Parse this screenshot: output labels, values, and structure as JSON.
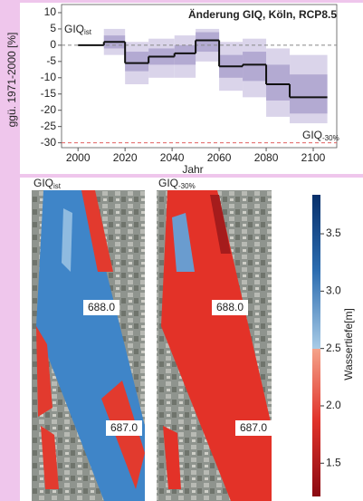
{
  "chart_data": {
    "type": "step",
    "title": "Änderung GIQ, Köln, RCP8.5",
    "y_label": "ggü. 1971-2000 [%]",
    "x_label": "Jahr",
    "edges": [
      2000,
      2011,
      2020,
      2030,
      2041,
      2050,
      2060,
      2070,
      2080,
      2090,
      2106
    ],
    "values": [
      0,
      1,
      -5.5,
      -3.5,
      -2.5,
      1.5,
      -6.5,
      -6,
      -12,
      -16
    ],
    "color": "#111111",
    "bands": [
      {
        "color": "#dad4ea",
        "low": [
          null,
          -3,
          -12,
          -10,
          -10,
          -5,
          -14,
          -16,
          -22,
          -24
        ],
        "high": [
          null,
          5,
          1,
          2,
          3,
          5,
          1,
          2,
          -1,
          -3
        ]
      },
      {
        "color": "#b3aad2",
        "low": [
          null,
          -1,
          -8,
          -6,
          -6,
          -2,
          -10,
          -11,
          -17,
          -21
        ],
        "high": [
          null,
          3,
          -2,
          -1,
          0,
          4,
          -3,
          -2,
          -6,
          -9
        ]
      }
    ],
    "reference_lines": [
      {
        "value": 0,
        "color": "#888888"
      },
      {
        "value": -30,
        "color": "#e06060"
      }
    ],
    "annotations": [
      {
        "text": "GIQ",
        "sub": "ist"
      },
      {
        "text": "GIQ",
        "sub": "-30%"
      }
    ],
    "xlim": [
      1993,
      2110
    ],
    "ylim": [
      -31.5,
      12.5
    ],
    "xticks": [
      2000,
      2020,
      2040,
      2060,
      2080,
      2100
    ],
    "yticks": [
      10,
      5,
      0,
      -5,
      -10,
      -15,
      -20,
      -25,
      -30
    ]
  },
  "maps": {
    "panels": [
      {
        "title": "GIQ",
        "sub": "ist",
        "labels": [
          "688.0",
          "687.0"
        ]
      },
      {
        "title": "GIQ",
        "sub": "-30%",
        "labels": [
          "688.0",
          "687.0"
        ]
      }
    ],
    "colorbar": {
      "label": "Wassertiefe[m]",
      "lim": [
        1.21,
        3.84
      ],
      "ticks": [
        {
          "value": 3.5,
          "label": "3.5"
        },
        {
          "value": 3,
          "label": "3.0"
        },
        {
          "value": 2.5,
          "label": "2.5"
        },
        {
          "value": 2,
          "label": "2.0"
        },
        {
          "value": 1.5,
          "label": "1.5"
        }
      ]
    }
  }
}
